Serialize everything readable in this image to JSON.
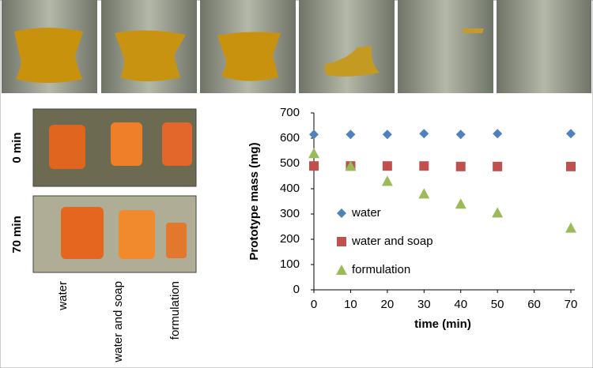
{
  "photos": {
    "row_labels": [
      "0 min",
      "70 min"
    ],
    "column_labels": [
      "water",
      "water and soap",
      "formulation"
    ]
  },
  "chart_data": {
    "type": "scatter",
    "x_label": "time (min)",
    "y_label": "Prototype mass (mg)",
    "x": [
      0,
      10,
      20,
      30,
      40,
      50,
      70
    ],
    "series": [
      {
        "name": "water",
        "color": "#4f81bd",
        "marker": "diamond",
        "values": [
          615,
          615,
          615,
          618,
          615,
          618,
          618
        ]
      },
      {
        "name": "water and soap",
        "color": "#c0504d",
        "marker": "square",
        "values": [
          490,
          490,
          490,
          490,
          488,
          488,
          488
        ]
      },
      {
        "name": "formulation",
        "color": "#9bbb59",
        "marker": "triangle",
        "values": [
          540,
          490,
          430,
          380,
          340,
          305,
          245
        ]
      }
    ],
    "xlim": [
      0,
      70
    ],
    "xticks": [
      0,
      10,
      20,
      30,
      40,
      50,
      60,
      70
    ],
    "ylim": [
      0,
      700
    ],
    "yticks": [
      0,
      100,
      200,
      300,
      400,
      500,
      600,
      700
    ],
    "grid": false,
    "legend": "left"
  }
}
